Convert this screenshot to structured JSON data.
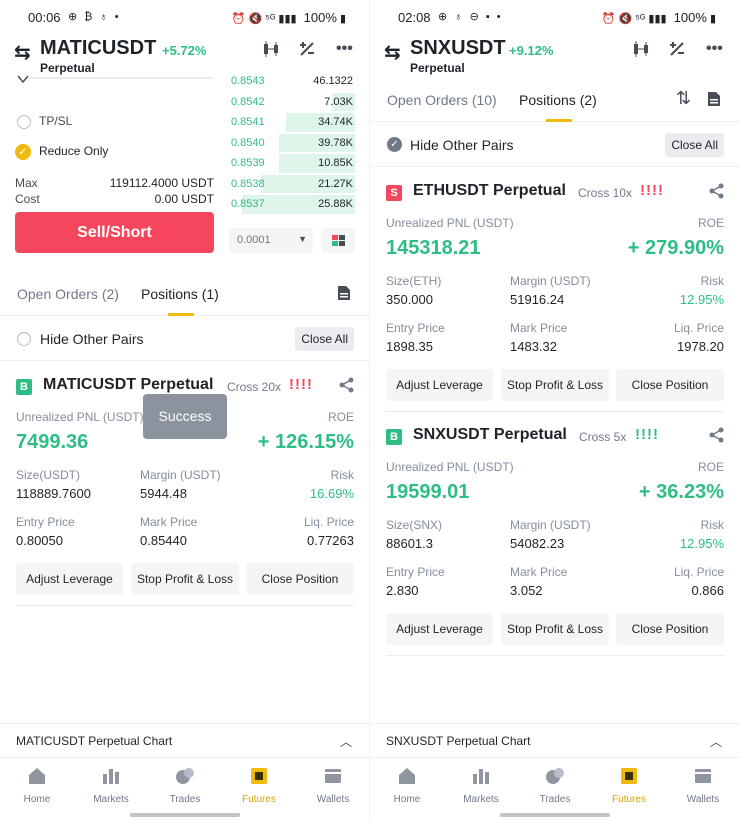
{
  "colors": {
    "green": "#2ebd85",
    "red": "#f6465d",
    "accent": "#f0b90b",
    "grey_text": "#707a8a"
  },
  "left": {
    "status": {
      "time": "00:06",
      "battery": "100%"
    },
    "header": {
      "symbol": "MATICUSDT",
      "change": "+5.72%",
      "subtitle": "Perpetual"
    },
    "form": {
      "tpsl_label": "TP/SL",
      "reduce_only_label": "Reduce Only",
      "max_label": "Max",
      "max_value": "119112.4000 USDT",
      "cost_label": "Cost",
      "cost_value": "0.00 USDT",
      "sell_label": "Sell/Short"
    },
    "orderbook": [
      {
        "price": "0.8543",
        "qty": "46.1322",
        "depth": 0.0
      },
      {
        "price": "0.8542",
        "qty": "7.03K",
        "depth": 0.18
      },
      {
        "price": "0.8541",
        "qty": "34.74K",
        "depth": 0.55
      },
      {
        "price": "0.8540",
        "qty": "39.78K",
        "depth": 0.6
      },
      {
        "price": "0.8539",
        "qty": "10.85K",
        "depth": 0.6
      },
      {
        "price": "0.8538",
        "qty": "21.27K",
        "depth": 0.75
      },
      {
        "price": "0.8537",
        "qty": "25.88K",
        "depth": 0.9
      }
    ],
    "depth_value": "0.0001",
    "tabs": {
      "open_orders": "Open Orders (2)",
      "positions": "Positions (1)"
    },
    "hide_other_pairs": "Hide Other Pairs",
    "close_all": "Close All",
    "toast": "Success",
    "positions": [
      {
        "side": "B",
        "name": "MATICUSDT Perpetual",
        "cross": "Cross 20x",
        "risk_bars": "!!!!",
        "pnl_label": "Unrealized PNL (USDT)",
        "pnl": "7499.36",
        "roe_label": "ROE",
        "roe": "+ 126.15%",
        "size_label": "Size(USDT)",
        "size": "118889.7600",
        "margin_label": "Margin (USDT)",
        "margin": "5944.48",
        "risk_label": "Risk",
        "risk": "16.69%",
        "entry_label": "Entry Price",
        "entry": "0.80050",
        "mark_label": "Mark Price",
        "mark": "0.85440",
        "liq_label": "Liq. Price",
        "liq": "0.77263",
        "btn_leverage": "Adjust Leverage",
        "btn_tpsl": "Stop Profit & Loss",
        "btn_close": "Close Position"
      }
    ],
    "chart_label": "MATICUSDT Perpetual  Chart"
  },
  "right": {
    "status": {
      "time": "02:08",
      "battery": "100%"
    },
    "header": {
      "symbol": "SNXUSDT",
      "change": "+9.12%",
      "subtitle": "Perpetual"
    },
    "tabs": {
      "open_orders": "Open Orders (10)",
      "positions": "Positions (2)"
    },
    "hide_other_pairs": "Hide Other Pairs",
    "close_all": "Close All",
    "positions": [
      {
        "side": "S",
        "name": "ETHUSDT Perpetual",
        "cross": "Cross 10x",
        "risk_bars": "!!!!",
        "pnl_label": "Unrealized PNL (USDT)",
        "pnl": "145318.21",
        "roe_label": "ROE",
        "roe": "+ 279.90%",
        "size_label": "Size(ETH)",
        "size": "350.000",
        "margin_label": "Margin (USDT)",
        "margin": "51916.24",
        "risk_label": "Risk",
        "risk": "12.95%",
        "entry_label": "Entry Price",
        "entry": "1898.35",
        "mark_label": "Mark Price",
        "mark": "1483.32",
        "liq_label": "Liq. Price",
        "liq": "1978.20",
        "btn_leverage": "Adjust Leverage",
        "btn_tpsl": "Stop Profit & Loss",
        "btn_close": "Close Position"
      },
      {
        "side": "B",
        "name": "SNXUSDT Perpetual",
        "cross": "Cross 5x",
        "risk_bars": "!!!!",
        "pnl_label": "Unrealized PNL (USDT)",
        "pnl": "19599.01",
        "roe_label": "ROE",
        "roe": "+ 36.23%",
        "size_label": "Size(SNX)",
        "size": "88601.3",
        "margin_label": "Margin (USDT)",
        "margin": "54082.23",
        "risk_label": "Risk",
        "risk": "12.95%",
        "entry_label": "Entry Price",
        "entry": "2.830",
        "mark_label": "Mark Price",
        "mark": "3.052",
        "liq_label": "Liq. Price",
        "liq": "0.866",
        "btn_leverage": "Adjust Leverage",
        "btn_tpsl": "Stop Profit & Loss",
        "btn_close": "Close Position"
      }
    ],
    "chart_label": "SNXUSDT Perpetual  Chart"
  },
  "nav": [
    "Home",
    "Markets",
    "Trades",
    "Futures",
    "Wallets"
  ]
}
